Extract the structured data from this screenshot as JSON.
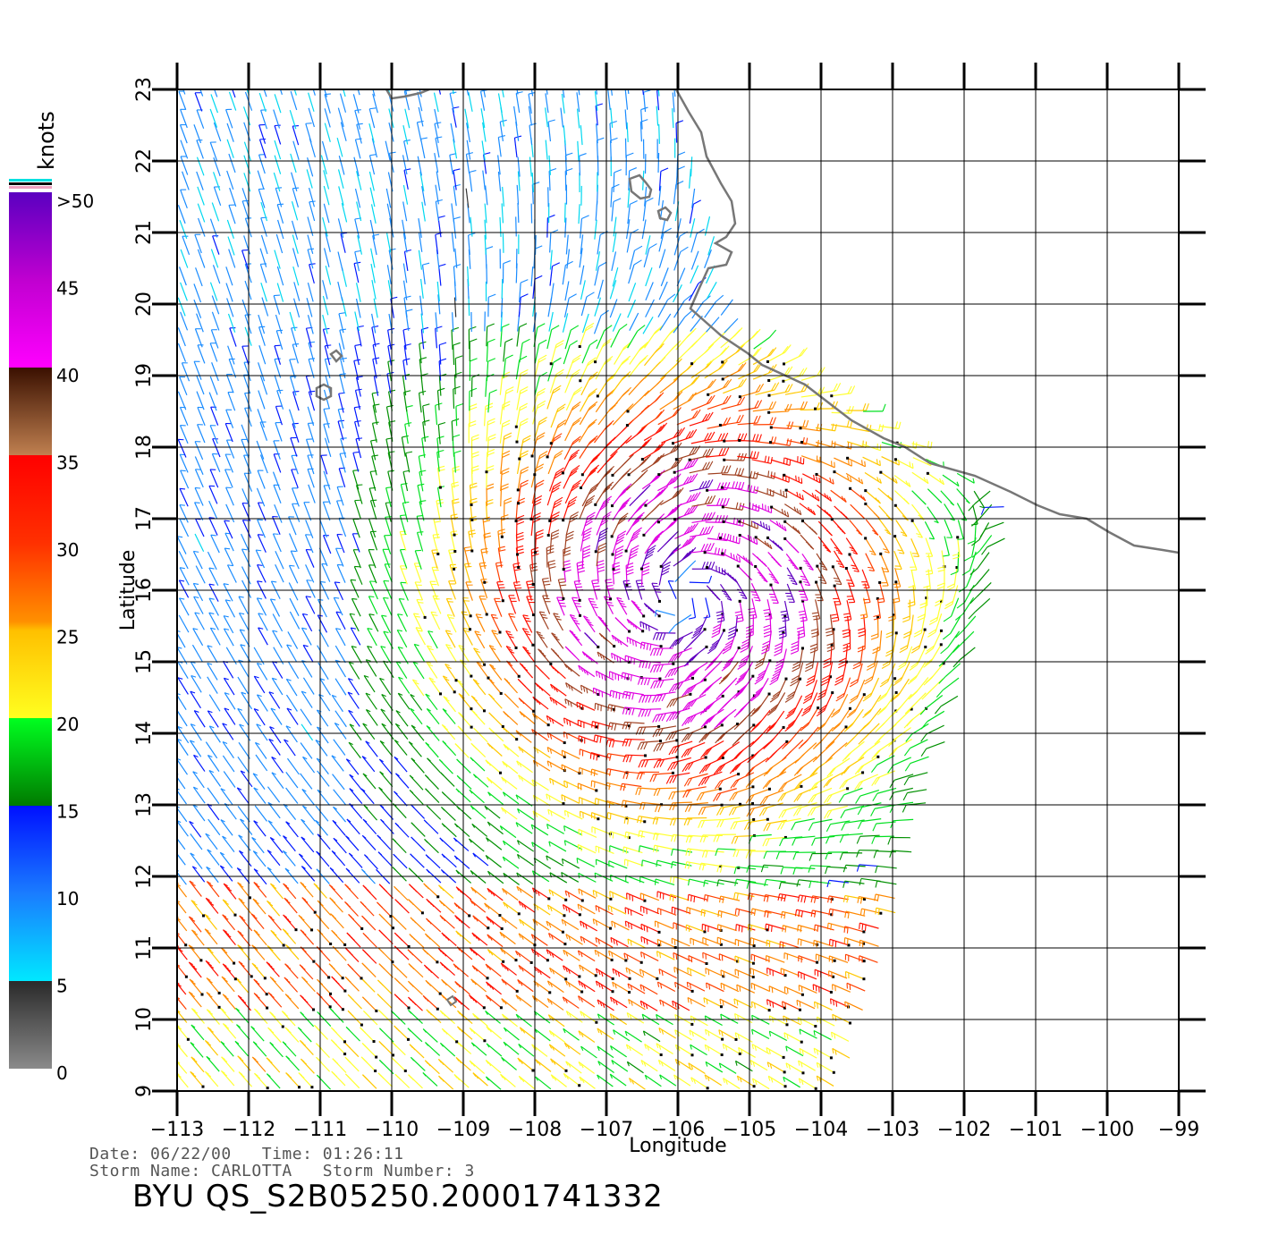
{
  "map": {
    "xlabel": "Longitude",
    "ylabel": "Latitude",
    "lon_range": [
      -113,
      -99
    ],
    "lat_range": [
      9,
      23
    ],
    "lon_ticks": [
      "−113",
      "−112",
      "−111",
      "−110",
      "−109",
      "−108",
      "−107",
      "−106",
      "−105",
      "−104",
      "−103",
      "−102",
      "−101",
      "−100",
      "−99"
    ],
    "lat_ticks": [
      "9",
      "10",
      "11",
      "12",
      "13",
      "14",
      "15",
      "16",
      "17",
      "18",
      "19",
      "20",
      "21",
      "22",
      "23"
    ],
    "grid": true,
    "storm_center": {
      "lon": -105.9,
      "lat": 15.9
    },
    "coast_color": "#777777"
  },
  "scale": {
    "unit": "knots",
    "labels": [
      ">50",
      "45",
      "40",
      "35",
      "30",
      "25",
      "20",
      "15",
      "10",
      "5",
      "0"
    ],
    "bins": [
      {
        "label": "0-5",
        "colors": [
          "#8a8a8a",
          "#2a2a2a"
        ]
      },
      {
        "label": "5-10",
        "colors": [
          "#00e8ff",
          "#1a7cff"
        ]
      },
      {
        "label": "10-15",
        "colors": [
          "#1a7cff",
          "#0010ff"
        ]
      },
      {
        "label": "15-20",
        "colors": [
          "#007a00",
          "#00ff20"
        ]
      },
      {
        "label": "20-25",
        "colors": [
          "#ffff20",
          "#ffc000"
        ]
      },
      {
        "label": "25-30",
        "colors": [
          "#ff9000",
          "#ff3000"
        ]
      },
      {
        "label": "30-35",
        "colors": [
          "#ff2000",
          "#ff0000"
        ]
      },
      {
        "label": "35-40",
        "colors": [
          "#c08050",
          "#3a1000"
        ]
      },
      {
        "label": "40-45",
        "colors": [
          "#ff00ff",
          "#c000d0"
        ]
      },
      {
        "label": "45-50",
        "colors": [
          "#c000d0",
          "#5a00c0"
        ]
      }
    ]
  },
  "info": {
    "date_line": "Date: 06/22/00   Time: 01:26:11",
    "storm_line": "Storm Name: CARLOTTA   Storm Number: 3",
    "file_title": "BYU QS_S2B05250.20001741332"
  }
}
